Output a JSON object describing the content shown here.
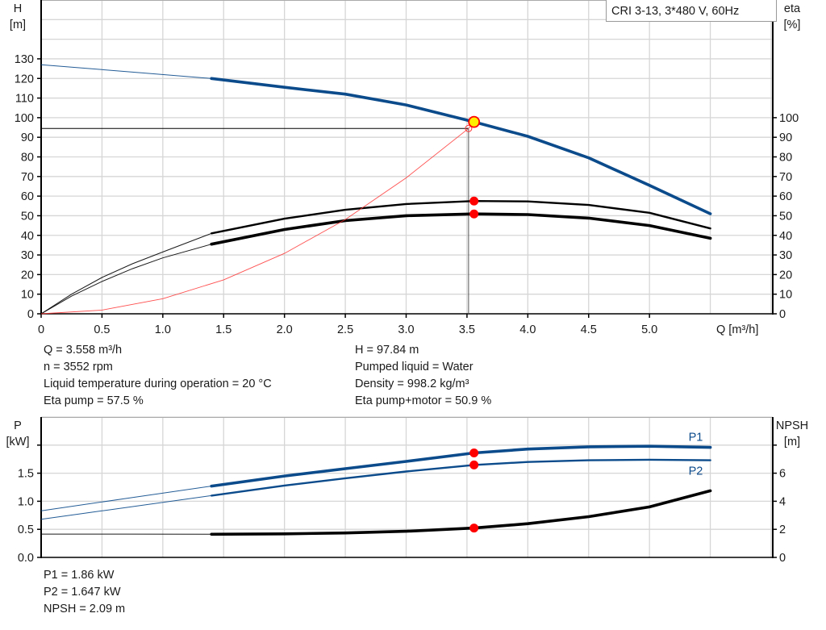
{
  "title": "CRI 3-13, 3*480 V, 60Hz",
  "chart_data": [
    {
      "type": "line",
      "name": "head-efficiency-chart",
      "xlabel": "Q [m³/h]",
      "ylabel_left": {
        "line1": "H",
        "line2": "[m]"
      },
      "ylabel_right": {
        "line1": "eta",
        "line2": "[%]"
      },
      "xlim": [
        0,
        6
      ],
      "ylim_left": [
        0,
        160
      ],
      "ylim_right": [
        0,
        160
      ],
      "x_ticks": [
        "0",
        "0.5",
        "1.0",
        "1.5",
        "2.0",
        "2.5",
        "3.0",
        "3.5",
        "4.0",
        "4.5",
        "5.0"
      ],
      "y_ticks_left": [
        "0",
        "10",
        "20",
        "30",
        "40",
        "50",
        "60",
        "70",
        "80",
        "90",
        "100",
        "110",
        "120",
        "130"
      ],
      "y_ticks_right": [
        "0",
        "10",
        "20",
        "30",
        "40",
        "50",
        "60",
        "70",
        "80",
        "90",
        "100"
      ],
      "grid": true,
      "series": [
        {
          "id": "H",
          "axis": "left",
          "color": "#0b4a8b",
          "thin_until": 1.4,
          "q": [
            0,
            0.7,
            1.4,
            2.0,
            2.5,
            3.0,
            3.558,
            4.0,
            4.5,
            5.0,
            5.5
          ],
          "values": [
            127,
            123.5,
            120,
            115.5,
            112,
            106.5,
            97.84,
            90.5,
            79.5,
            65.5,
            51
          ]
        },
        {
          "id": "eta_pump",
          "axis": "right",
          "color": "#000000",
          "thin_until": 1.4,
          "q": [
            0,
            0.25,
            0.5,
            0.75,
            1.0,
            1.4,
            2.0,
            2.5,
            3.0,
            3.558,
            4.0,
            4.5,
            5.0,
            5.5
          ],
          "values": [
            0,
            10,
            18.5,
            25.5,
            31.5,
            41,
            48.5,
            53,
            56,
            57.5,
            57.3,
            55.5,
            51.5,
            43.5
          ]
        },
        {
          "id": "eta_pump_motor",
          "axis": "right",
          "color": "#000000",
          "thin_until": 1.4,
          "q": [
            0,
            0.25,
            0.5,
            0.75,
            1.0,
            1.4,
            2.0,
            2.5,
            3.0,
            3.558,
            4.0,
            4.5,
            5.0,
            5.5
          ],
          "values": [
            0,
            9,
            16.5,
            23,
            28.5,
            35.5,
            43,
            47.5,
            50,
            50.9,
            50.6,
            48.8,
            45,
            38.5
          ]
        },
        {
          "id": "system_curve",
          "axis": "left",
          "color": "#ff3030",
          "thin_until": 6,
          "q": [
            0,
            0.5,
            1.0,
            1.5,
            2.0,
            2.5,
            3.0,
            3.513,
            3.558
          ],
          "values": [
            0,
            1.9,
            7.7,
            17.3,
            30.8,
            48.1,
            69.3,
            94.5,
            97.84
          ]
        }
      ],
      "duty_point": {
        "q": 3.558,
        "h": 97.84,
        "eta_pump": 57.5,
        "eta_pump_motor": 50.9
      },
      "required_point": {
        "q": 3.513,
        "h": 94.5
      }
    },
    {
      "type": "line",
      "name": "power-npsh-chart",
      "ylabel_left": {
        "line1": "P",
        "line2": "[kW]"
      },
      "ylabel_right": {
        "line1": "NPSH",
        "line2": "[m]"
      },
      "xlim": [
        0,
        6
      ],
      "ylim_left": [
        0,
        2.5
      ],
      "ylim_right": [
        0,
        10
      ],
      "y_ticks_left": [
        "0.0",
        "0.5",
        "1.0",
        "1.5"
      ],
      "y_ticks_right": [
        "0",
        "2",
        "4",
        "6"
      ],
      "grid": true,
      "series": [
        {
          "id": "P1",
          "name": "P1",
          "axis": "left",
          "color": "#0b4a8b",
          "thin_until": 1.4,
          "q": [
            0,
            0.7,
            1.4,
            2.0,
            2.5,
            3.0,
            3.558,
            4.0,
            4.5,
            5.0,
            5.5
          ],
          "values": [
            0.83,
            1.05,
            1.27,
            1.45,
            1.58,
            1.71,
            1.86,
            1.93,
            1.97,
            1.98,
            1.96
          ]
        },
        {
          "id": "P2",
          "name": "P2",
          "axis": "left",
          "color": "#0b4a8b",
          "thin_until": 1.4,
          "q": [
            0,
            0.7,
            1.4,
            2.0,
            2.5,
            3.0,
            3.558,
            4.0,
            4.5,
            5.0,
            5.5
          ],
          "values": [
            0.68,
            0.89,
            1.1,
            1.28,
            1.41,
            1.53,
            1.647,
            1.7,
            1.73,
            1.74,
            1.73
          ]
        },
        {
          "id": "NPSH",
          "axis": "right",
          "color": "#000000",
          "thin_until": 1.4,
          "q": [
            0,
            0.7,
            1.4,
            2.0,
            2.5,
            3.0,
            3.558,
            4.0,
            4.5,
            5.0,
            5.5
          ],
          "values": [
            1.66,
            1.66,
            1.65,
            1.68,
            1.74,
            1.86,
            2.09,
            2.4,
            2.9,
            3.6,
            4.75
          ]
        }
      ],
      "duty_point": {
        "q": 3.558,
        "p1": 1.86,
        "p2": 1.647,
        "npsh": 2.09
      }
    }
  ],
  "info_upper_left": [
    "Q = 3.558 m³/h",
    "n = 3552 rpm",
    "Liquid temperature during operation = 20 °C",
    "Eta pump = 57.5 %"
  ],
  "info_upper_right": [
    "H = 97.84 m",
    "Pumped liquid = Water",
    "Density = 998.2 kg/m³",
    "Eta pump+motor = 50.9 %"
  ],
  "info_lower": [
    "P1 = 1.86 kW",
    "P2 = 1.647 kW",
    "NPSH = 2.09 m"
  ]
}
